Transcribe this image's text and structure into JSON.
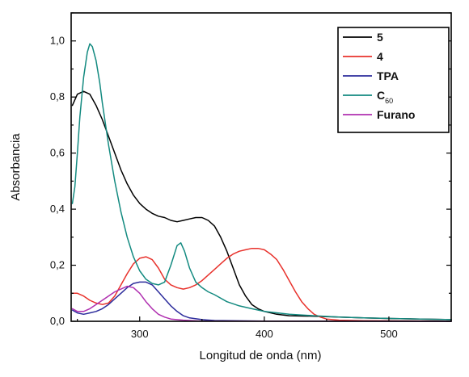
{
  "chart_data": {
    "type": "line",
    "title": "",
    "xlabel": "Longitud de onda (nm)",
    "ylabel": "Absorbancia",
    "xlim": [
      245,
      550
    ],
    "ylim": [
      0.0,
      1.1
    ],
    "x_ticks": [
      300,
      400,
      500
    ],
    "x_tick_labels": [
      "300",
      "400",
      "500"
    ],
    "y_ticks": [
      0.0,
      0.2,
      0.4,
      0.6,
      0.8,
      1.0
    ],
    "y_tick_labels": [
      "0,0",
      "0,2",
      "0,4",
      "0,6",
      "0,8",
      "1,0"
    ],
    "grid": false,
    "legend_position": "top-right",
    "series": [
      {
        "name": "5",
        "color": "#000000",
        "points": [
          [
            246,
            0.77
          ],
          [
            250,
            0.81
          ],
          [
            255,
            0.82
          ],
          [
            260,
            0.81
          ],
          [
            265,
            0.77
          ],
          [
            270,
            0.72
          ],
          [
            275,
            0.66
          ],
          [
            280,
            0.6
          ],
          [
            285,
            0.54
          ],
          [
            290,
            0.49
          ],
          [
            295,
            0.45
          ],
          [
            300,
            0.42
          ],
          [
            305,
            0.4
          ],
          [
            310,
            0.385
          ],
          [
            315,
            0.375
          ],
          [
            320,
            0.37
          ],
          [
            325,
            0.36
          ],
          [
            330,
            0.355
          ],
          [
            335,
            0.36
          ],
          [
            340,
            0.365
          ],
          [
            345,
            0.37
          ],
          [
            350,
            0.37
          ],
          [
            355,
            0.36
          ],
          [
            360,
            0.34
          ],
          [
            365,
            0.3
          ],
          [
            370,
            0.25
          ],
          [
            375,
            0.19
          ],
          [
            380,
            0.13
          ],
          [
            385,
            0.09
          ],
          [
            390,
            0.06
          ],
          [
            395,
            0.045
          ],
          [
            400,
            0.035
          ],
          [
            410,
            0.025
          ],
          [
            420,
            0.02
          ],
          [
            440,
            0.018
          ],
          [
            460,
            0.015
          ],
          [
            480,
            0.012
          ],
          [
            500,
            0.01
          ],
          [
            525,
            0.008
          ],
          [
            550,
            0.006
          ]
        ]
      },
      {
        "name": "4",
        "color": "#e8322c",
        "points": [
          [
            246,
            0.1
          ],
          [
            250,
            0.1
          ],
          [
            255,
            0.09
          ],
          [
            260,
            0.075
          ],
          [
            265,
            0.065
          ],
          [
            270,
            0.06
          ],
          [
            275,
            0.065
          ],
          [
            280,
            0.09
          ],
          [
            285,
            0.13
          ],
          [
            290,
            0.17
          ],
          [
            295,
            0.205
          ],
          [
            300,
            0.225
          ],
          [
            305,
            0.23
          ],
          [
            310,
            0.22
          ],
          [
            315,
            0.19
          ],
          [
            320,
            0.15
          ],
          [
            325,
            0.13
          ],
          [
            330,
            0.12
          ],
          [
            335,
            0.115
          ],
          [
            340,
            0.12
          ],
          [
            345,
            0.13
          ],
          [
            350,
            0.145
          ],
          [
            355,
            0.165
          ],
          [
            360,
            0.185
          ],
          [
            365,
            0.205
          ],
          [
            370,
            0.225
          ],
          [
            375,
            0.24
          ],
          [
            380,
            0.25
          ],
          [
            385,
            0.255
          ],
          [
            390,
            0.26
          ],
          [
            395,
            0.26
          ],
          [
            400,
            0.255
          ],
          [
            405,
            0.24
          ],
          [
            410,
            0.22
          ],
          [
            415,
            0.185
          ],
          [
            420,
            0.145
          ],
          [
            425,
            0.105
          ],
          [
            430,
            0.07
          ],
          [
            435,
            0.045
          ],
          [
            440,
            0.025
          ],
          [
            445,
            0.015
          ],
          [
            450,
            0.008
          ],
          [
            460,
            0.004
          ],
          [
            480,
            0.002
          ],
          [
            550,
            0.001
          ]
        ]
      },
      {
        "name": "TPA",
        "color": "#2c2c9c",
        "points": [
          [
            246,
            0.04
          ],
          [
            250,
            0.03
          ],
          [
            255,
            0.025
          ],
          [
            260,
            0.03
          ],
          [
            265,
            0.035
          ],
          [
            270,
            0.045
          ],
          [
            275,
            0.06
          ],
          [
            280,
            0.08
          ],
          [
            285,
            0.1
          ],
          [
            290,
            0.12
          ],
          [
            295,
            0.135
          ],
          [
            300,
            0.14
          ],
          [
            305,
            0.14
          ],
          [
            310,
            0.13
          ],
          [
            315,
            0.105
          ],
          [
            320,
            0.08
          ],
          [
            325,
            0.055
          ],
          [
            330,
            0.035
          ],
          [
            335,
            0.02
          ],
          [
            340,
            0.012
          ],
          [
            350,
            0.006
          ],
          [
            360,
            0.003
          ],
          [
            400,
            0.001
          ],
          [
            550,
            0.0
          ]
        ]
      },
      {
        "name": "C60",
        "color": "#138a80",
        "points": [
          [
            246,
            0.42
          ],
          [
            248,
            0.48
          ],
          [
            250,
            0.6
          ],
          [
            252,
            0.73
          ],
          [
            255,
            0.87
          ],
          [
            258,
            0.96
          ],
          [
            260,
            0.99
          ],
          [
            262,
            0.98
          ],
          [
            265,
            0.93
          ],
          [
            268,
            0.85
          ],
          [
            270,
            0.78
          ],
          [
            275,
            0.63
          ],
          [
            280,
            0.5
          ],
          [
            285,
            0.39
          ],
          [
            290,
            0.3
          ],
          [
            295,
            0.23
          ],
          [
            300,
            0.18
          ],
          [
            305,
            0.15
          ],
          [
            310,
            0.135
          ],
          [
            315,
            0.13
          ],
          [
            320,
            0.14
          ],
          [
            325,
            0.2
          ],
          [
            330,
            0.27
          ],
          [
            333,
            0.28
          ],
          [
            336,
            0.25
          ],
          [
            340,
            0.19
          ],
          [
            345,
            0.14
          ],
          [
            350,
            0.12
          ],
          [
            355,
            0.105
          ],
          [
            360,
            0.095
          ],
          [
            370,
            0.07
          ],
          [
            380,
            0.055
          ],
          [
            390,
            0.045
          ],
          [
            400,
            0.035
          ],
          [
            420,
            0.025
          ],
          [
            440,
            0.02
          ],
          [
            460,
            0.015
          ],
          [
            480,
            0.012
          ],
          [
            500,
            0.01
          ],
          [
            525,
            0.008
          ],
          [
            550,
            0.006
          ]
        ]
      },
      {
        "name": "Furano",
        "color": "#b030b0",
        "points": [
          [
            246,
            0.045
          ],
          [
            250,
            0.035
          ],
          [
            255,
            0.035
          ],
          [
            260,
            0.045
          ],
          [
            265,
            0.06
          ],
          [
            270,
            0.075
          ],
          [
            275,
            0.09
          ],
          [
            280,
            0.105
          ],
          [
            285,
            0.115
          ],
          [
            290,
            0.125
          ],
          [
            295,
            0.12
          ],
          [
            300,
            0.1
          ],
          [
            305,
            0.07
          ],
          [
            310,
            0.045
          ],
          [
            315,
            0.025
          ],
          [
            320,
            0.015
          ],
          [
            325,
            0.008
          ],
          [
            335,
            0.004
          ],
          [
            350,
            0.001
          ],
          [
            550,
            0.0
          ]
        ]
      }
    ]
  },
  "legend": {
    "items": [
      {
        "label": "5",
        "sub": ""
      },
      {
        "label": "4",
        "sub": ""
      },
      {
        "label": "TPA",
        "sub": ""
      },
      {
        "label": "C",
        "sub": "60"
      },
      {
        "label": "Furano",
        "sub": ""
      }
    ]
  }
}
